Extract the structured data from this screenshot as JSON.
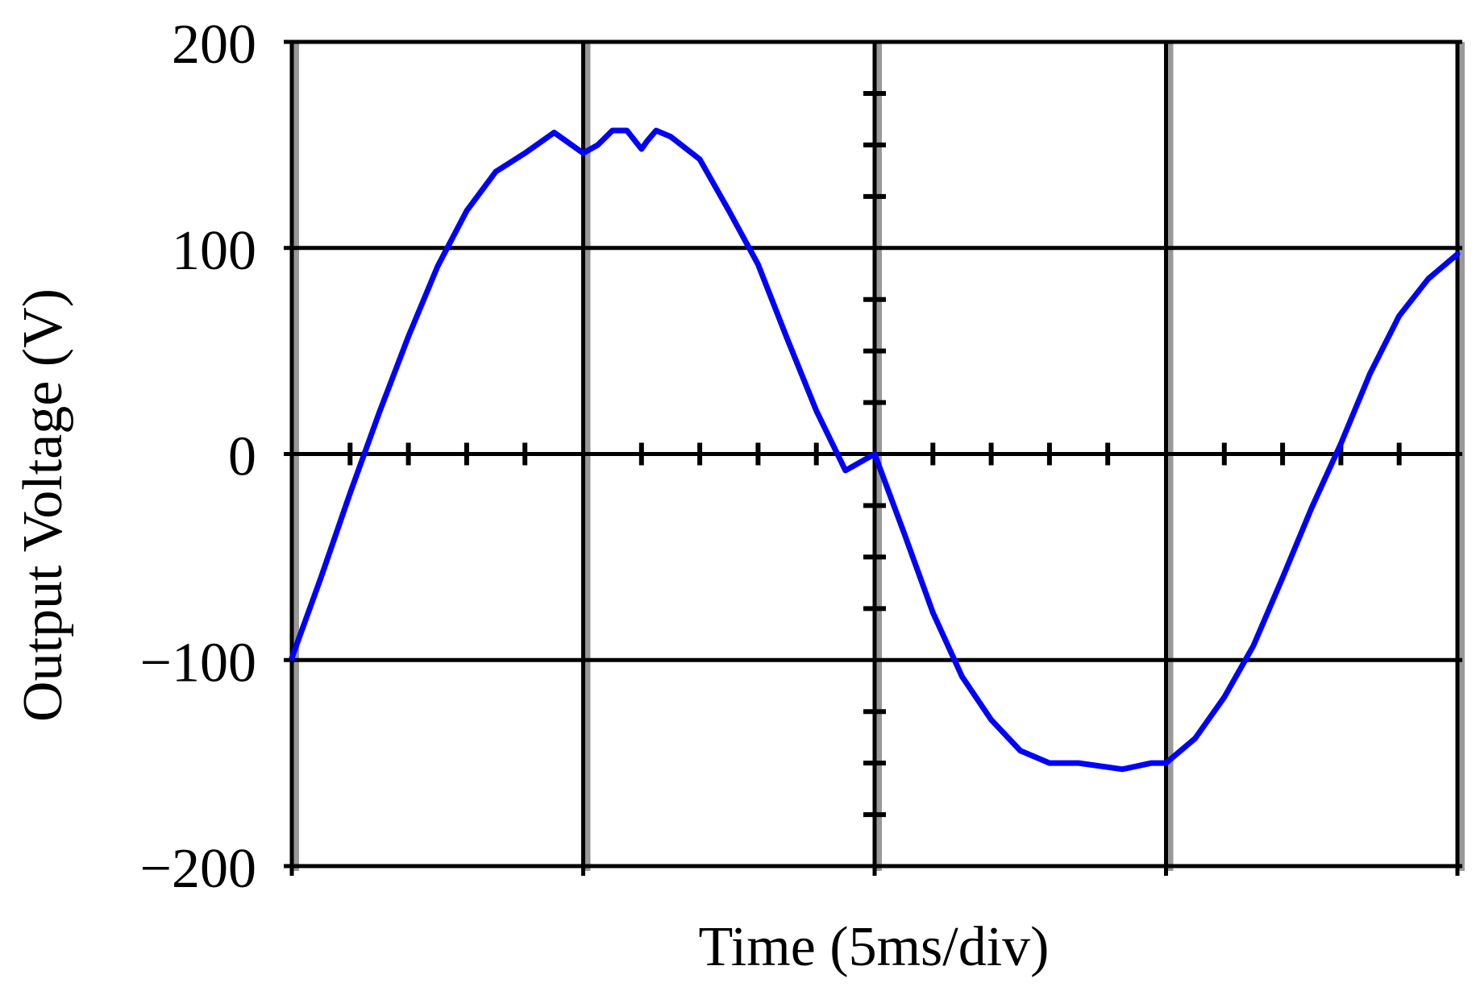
{
  "chart_data": {
    "type": "line",
    "title": "",
    "xlabel": "Time (5ms/div)",
    "ylabel": "Output Voltage (V)",
    "x_unit": "div",
    "xlim": [
      0,
      4
    ],
    "ylim": [
      -200,
      200
    ],
    "yticks": [
      200,
      100,
      0,
      -100,
      -200
    ],
    "ytick_labels": [
      "200",
      "100",
      "0",
      "−100",
      "−200"
    ],
    "x_divisions": 4,
    "x_minor_ticks_per_div": 5,
    "y_minor_ticks_per_div": 4,
    "grid": true,
    "colors": {
      "trace": "#0000ff",
      "grid": "#000000",
      "shade": "#999999"
    },
    "series": [
      {
        "color": "#0000ff",
        "x": [
          0.0,
          0.1,
          0.2,
          0.3,
          0.4,
          0.5,
          0.6,
          0.7,
          0.8,
          0.9,
          1.0,
          1.05,
          1.1,
          1.15,
          1.2,
          1.22,
          1.25,
          1.3,
          1.4,
          1.5,
          1.6,
          1.7,
          1.8,
          1.9,
          2.0,
          2.1,
          2.2,
          2.3,
          2.4,
          2.5,
          2.6,
          2.7,
          2.8,
          2.85,
          2.95,
          3.0,
          3.1,
          3.2,
          3.3,
          3.4,
          3.5,
          3.6,
          3.7,
          3.8,
          3.9,
          4.0
        ],
        "y": [
          -99,
          -60,
          -19,
          20,
          57,
          91,
          118,
          137,
          146,
          156,
          146,
          150,
          157,
          157,
          148,
          152,
          157,
          154,
          143,
          118,
          92,
          56,
          21,
          -8,
          0,
          -38,
          -77,
          -108,
          -129,
          -144,
          -150,
          -150,
          -152,
          -153,
          -150,
          -150,
          -138,
          -118,
          -93,
          -60,
          -26,
          5,
          39,
          67,
          85,
          97
        ]
      }
    ]
  }
}
